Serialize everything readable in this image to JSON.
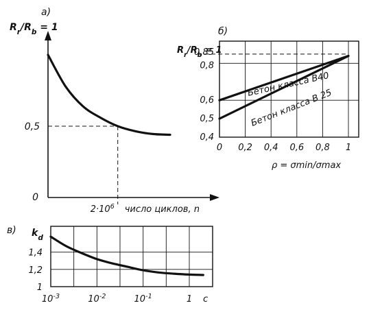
{
  "chart_data": [
    {
      "type": "line",
      "panel_label": "а)",
      "ylabel": "R_r/R_b = 1",
      "xlabel": "число циклов, n",
      "y_ticks": [
        "0,5",
        "0"
      ],
      "x_ticks": [
        "2·10⁶"
      ],
      "series": [
        {
          "points": [
            [
              0,
              1.0
            ],
            [
              0.5,
              0.78
            ],
            [
              1,
              0.64
            ],
            [
              1.5,
              0.56
            ],
            [
              2,
              0.5
            ],
            [
              2.5,
              0.465
            ],
            [
              3,
              0.445
            ],
            [
              3.5,
              0.44
            ]
          ]
        }
      ],
      "reference": {
        "x": 2,
        "y": 0.5,
        "x_label": "2·10⁶",
        "y_label": "0,5"
      }
    },
    {
      "type": "line",
      "panel_label": "б)",
      "ylabel": "R_r/R_b = 1",
      "xlabel": "ρ = σmin/σmax",
      "x_ticks": [
        "0",
        "0,2",
        "0,4",
        "0,6",
        "0,8",
        "1"
      ],
      "y_ticks": [
        "0,85",
        "0,8",
        "0,6",
        "0,5",
        "0,4"
      ],
      "xlim": [
        0,
        1.05
      ],
      "ylim": [
        0.4,
        0.92
      ],
      "series": [
        {
          "name": "Бетон класса В40",
          "x": [
            0,
            1
          ],
          "y": [
            0.6,
            0.84
          ]
        },
        {
          "name": "Бетон класса В 25",
          "x": [
            0,
            1
          ],
          "y": [
            0.5,
            0.84
          ]
        }
      ],
      "reference": {
        "y": 0.85
      }
    },
    {
      "type": "line",
      "panel_label": "в)",
      "ylabel": "k_d",
      "xlabel": "c",
      "x_ticks": [
        "10⁻³",
        "10⁻²",
        "10⁻¹",
        "1"
      ],
      "y_ticks": [
        "1,4",
        "1,2",
        "1"
      ],
      "ylim": [
        1.0,
        1.7
      ],
      "series": [
        {
          "x": [
            0.001,
            0.00215,
            0.00464,
            0.01,
            0.0215,
            0.0464,
            0.1,
            0.215,
            0.464,
            1,
            2
          ],
          "y": [
            1.58,
            1.47,
            1.39,
            1.32,
            1.27,
            1.23,
            1.19,
            1.165,
            1.15,
            1.14,
            1.135
          ]
        }
      ]
    }
  ]
}
